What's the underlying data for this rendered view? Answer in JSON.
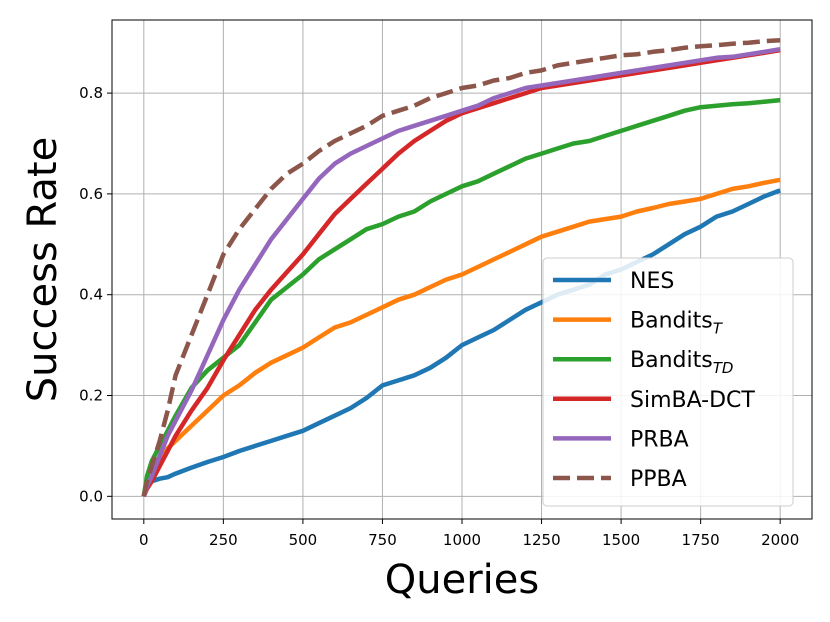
{
  "chart_data": {
    "type": "line",
    "title": "",
    "xlabel": "Queries",
    "ylabel": "Success Rate",
    "xlim": [
      -100,
      2100
    ],
    "ylim": [
      -0.045,
      0.945
    ],
    "xticks": [
      0,
      250,
      500,
      750,
      1000,
      1250,
      1500,
      1750,
      2000
    ],
    "yticks": [
      0.0,
      0.2,
      0.4,
      0.6,
      0.8
    ],
    "xtick_labels": [
      "0",
      "250",
      "500",
      "750",
      "1000",
      "1250",
      "1500",
      "1750",
      "2000"
    ],
    "ytick_labels": [
      "0.0",
      "0.2",
      "0.4",
      "0.6",
      "0.8"
    ],
    "grid": true,
    "legend_position": "lower-right",
    "series": [
      {
        "name": "NES",
        "label_main": "NES",
        "label_sub": "",
        "color": "#1f77b4",
        "dash": "solid",
        "x": [
          0,
          10,
          25,
          50,
          75,
          100,
          150,
          200,
          250,
          300,
          350,
          400,
          450,
          500,
          550,
          600,
          650,
          700,
          750,
          800,
          850,
          900,
          950,
          1000,
          1050,
          1100,
          1150,
          1200,
          1250,
          1300,
          1350,
          1400,
          1450,
          1500,
          1550,
          1600,
          1650,
          1700,
          1750,
          1800,
          1850,
          1900,
          1950,
          2000
        ],
        "values": [
          0.0,
          0.02,
          0.03,
          0.035,
          0.038,
          0.045,
          0.057,
          0.068,
          0.078,
          0.09,
          0.1,
          0.11,
          0.12,
          0.13,
          0.145,
          0.16,
          0.175,
          0.195,
          0.22,
          0.23,
          0.24,
          0.255,
          0.275,
          0.3,
          0.315,
          0.33,
          0.35,
          0.37,
          0.385,
          0.4,
          0.41,
          0.42,
          0.44,
          0.45,
          0.465,
          0.48,
          0.5,
          0.52,
          0.535,
          0.555,
          0.565,
          0.58,
          0.595,
          0.607
        ]
      },
      {
        "name": "Bandits_T",
        "label_main": "Bandits",
        "label_sub": "T",
        "color": "#ff7f0e",
        "dash": "solid",
        "x": [
          0,
          10,
          25,
          50,
          75,
          100,
          150,
          200,
          250,
          300,
          350,
          400,
          450,
          500,
          550,
          600,
          650,
          700,
          750,
          800,
          850,
          900,
          950,
          1000,
          1050,
          1100,
          1150,
          1200,
          1250,
          1300,
          1350,
          1400,
          1450,
          1500,
          1550,
          1600,
          1650,
          1700,
          1750,
          1800,
          1850,
          1900,
          1950,
          2000
        ],
        "values": [
          0.0,
          0.03,
          0.05,
          0.075,
          0.095,
          0.11,
          0.14,
          0.17,
          0.2,
          0.22,
          0.245,
          0.265,
          0.28,
          0.295,
          0.315,
          0.335,
          0.345,
          0.36,
          0.375,
          0.39,
          0.4,
          0.415,
          0.43,
          0.44,
          0.455,
          0.47,
          0.485,
          0.5,
          0.515,
          0.525,
          0.535,
          0.545,
          0.55,
          0.555,
          0.565,
          0.572,
          0.58,
          0.585,
          0.59,
          0.6,
          0.61,
          0.615,
          0.622,
          0.628
        ]
      },
      {
        "name": "Bandits_TD",
        "label_main": "Bandits",
        "label_sub": "TD",
        "color": "#2ca02c",
        "dash": "solid",
        "x": [
          0,
          10,
          25,
          50,
          75,
          100,
          150,
          200,
          250,
          300,
          350,
          400,
          450,
          500,
          550,
          600,
          650,
          700,
          750,
          800,
          850,
          900,
          950,
          1000,
          1050,
          1100,
          1150,
          1200,
          1250,
          1300,
          1350,
          1400,
          1450,
          1500,
          1550,
          1600,
          1650,
          1700,
          1750,
          1800,
          1850,
          1900,
          1950,
          2000
        ],
        "values": [
          0.0,
          0.04,
          0.07,
          0.1,
          0.13,
          0.16,
          0.215,
          0.25,
          0.275,
          0.3,
          0.345,
          0.39,
          0.415,
          0.44,
          0.47,
          0.49,
          0.51,
          0.53,
          0.54,
          0.555,
          0.565,
          0.585,
          0.6,
          0.615,
          0.625,
          0.64,
          0.655,
          0.67,
          0.68,
          0.69,
          0.7,
          0.705,
          0.715,
          0.725,
          0.735,
          0.745,
          0.755,
          0.765,
          0.772,
          0.775,
          0.778,
          0.78,
          0.783,
          0.786
        ]
      },
      {
        "name": "SimBA-DCT",
        "label_main": "SimBA-DCT",
        "label_sub": "",
        "color": "#d62728",
        "dash": "solid",
        "x": [
          0,
          10,
          25,
          50,
          75,
          100,
          150,
          200,
          250,
          300,
          350,
          400,
          450,
          500,
          550,
          600,
          650,
          700,
          750,
          800,
          850,
          900,
          950,
          1000,
          1050,
          1100,
          1150,
          1200,
          1250,
          1300,
          1350,
          1400,
          1450,
          1500,
          1550,
          1600,
          1650,
          1700,
          1750,
          1800,
          1850,
          1900,
          1950,
          2000
        ],
        "values": [
          0.0,
          0.015,
          0.03,
          0.06,
          0.09,
          0.12,
          0.17,
          0.215,
          0.27,
          0.32,
          0.37,
          0.41,
          0.445,
          0.48,
          0.52,
          0.56,
          0.59,
          0.62,
          0.65,
          0.68,
          0.705,
          0.725,
          0.745,
          0.76,
          0.77,
          0.78,
          0.79,
          0.8,
          0.81,
          0.815,
          0.82,
          0.825,
          0.83,
          0.835,
          0.84,
          0.845,
          0.85,
          0.855,
          0.86,
          0.865,
          0.87,
          0.875,
          0.88,
          0.885
        ]
      },
      {
        "name": "PRBA",
        "label_main": "PRBA",
        "label_sub": "",
        "color": "#9467bd",
        "dash": "solid",
        "x": [
          0,
          10,
          25,
          50,
          75,
          100,
          150,
          200,
          250,
          300,
          350,
          400,
          450,
          500,
          550,
          600,
          650,
          700,
          750,
          800,
          850,
          900,
          950,
          1000,
          1050,
          1100,
          1150,
          1200,
          1250,
          1300,
          1350,
          1400,
          1450,
          1500,
          1550,
          1600,
          1650,
          1700,
          1750,
          1800,
          1850,
          1900,
          1950,
          2000
        ],
        "values": [
          0.0,
          0.02,
          0.04,
          0.08,
          0.12,
          0.15,
          0.21,
          0.28,
          0.35,
          0.41,
          0.46,
          0.51,
          0.55,
          0.59,
          0.63,
          0.66,
          0.68,
          0.695,
          0.71,
          0.725,
          0.735,
          0.745,
          0.755,
          0.765,
          0.775,
          0.79,
          0.8,
          0.81,
          0.815,
          0.82,
          0.825,
          0.83,
          0.835,
          0.84,
          0.845,
          0.85,
          0.855,
          0.86,
          0.865,
          0.87,
          0.872,
          0.877,
          0.882,
          0.887
        ]
      },
      {
        "name": "PPBA",
        "label_main": "PPBA",
        "label_sub": "",
        "color": "#8c564b",
        "dash": "dashed",
        "x": [
          0,
          10,
          25,
          50,
          75,
          100,
          150,
          200,
          250,
          300,
          350,
          400,
          450,
          500,
          550,
          600,
          650,
          700,
          750,
          800,
          850,
          900,
          950,
          1000,
          1050,
          1100,
          1150,
          1200,
          1250,
          1300,
          1350,
          1400,
          1450,
          1500,
          1550,
          1600,
          1650,
          1700,
          1750,
          1800,
          1850,
          1900,
          1950,
          2000
        ],
        "values": [
          0.0,
          0.03,
          0.06,
          0.11,
          0.17,
          0.24,
          0.32,
          0.4,
          0.48,
          0.53,
          0.57,
          0.61,
          0.64,
          0.66,
          0.685,
          0.705,
          0.72,
          0.735,
          0.755,
          0.765,
          0.775,
          0.79,
          0.8,
          0.81,
          0.815,
          0.825,
          0.83,
          0.84,
          0.845,
          0.855,
          0.86,
          0.865,
          0.87,
          0.875,
          0.877,
          0.882,
          0.885,
          0.89,
          0.893,
          0.895,
          0.898,
          0.9,
          0.903,
          0.905
        ]
      }
    ]
  }
}
